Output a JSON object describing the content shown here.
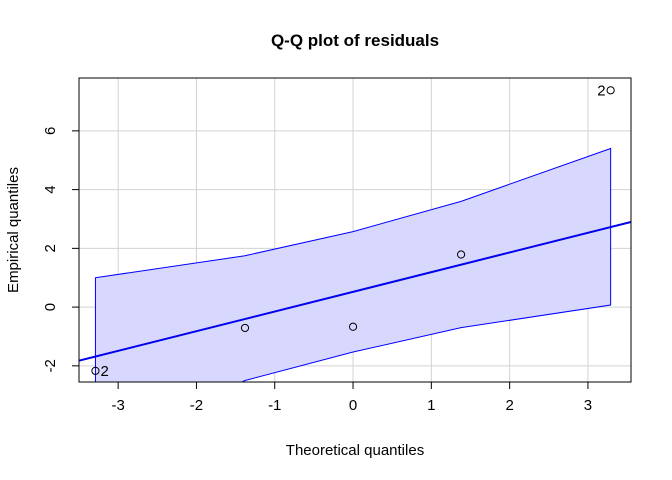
{
  "chart_data": {
    "type": "scatter",
    "title": "Q-Q plot of residuals",
    "xlabel": "Theoretical quantiles",
    "ylabel": "Empirical quantiles",
    "xlim": [
      -3.5,
      3.55
    ],
    "ylim": [
      -2.55,
      7.8
    ],
    "xticks": [
      -3,
      -2,
      -1,
      0,
      1,
      2,
      3
    ],
    "yticks": [
      -2,
      0,
      2,
      4,
      6
    ],
    "grid": true,
    "colors": {
      "band_fill": "#d8d8ff",
      "band_stroke": "#0000ff",
      "line": "#0000ee",
      "points": "#000000",
      "grid": "#d3d3d3"
    },
    "points": [
      {
        "x": -3.29,
        "y": -2.17,
        "label": "2",
        "label_side": "right"
      },
      {
        "x": -1.38,
        "y": -0.71,
        "label": ""
      },
      {
        "x": 0.0,
        "y": -0.67,
        "label": ""
      },
      {
        "x": 1.38,
        "y": 1.79,
        "label": ""
      },
      {
        "x": 3.29,
        "y": 7.38,
        "label": "2",
        "label_side": "left"
      }
    ],
    "reference_line": {
      "intercept": 0.52,
      "slope": 0.67
    },
    "confidence_band": {
      "x": [
        -3.29,
        -1.38,
        0.0,
        1.38,
        3.29
      ],
      "upper": [
        1.0,
        1.75,
        2.57,
        3.6,
        5.4
      ],
      "lower": [
        -5.0,
        -2.5,
        -1.53,
        -0.7,
        0.07
      ]
    }
  }
}
